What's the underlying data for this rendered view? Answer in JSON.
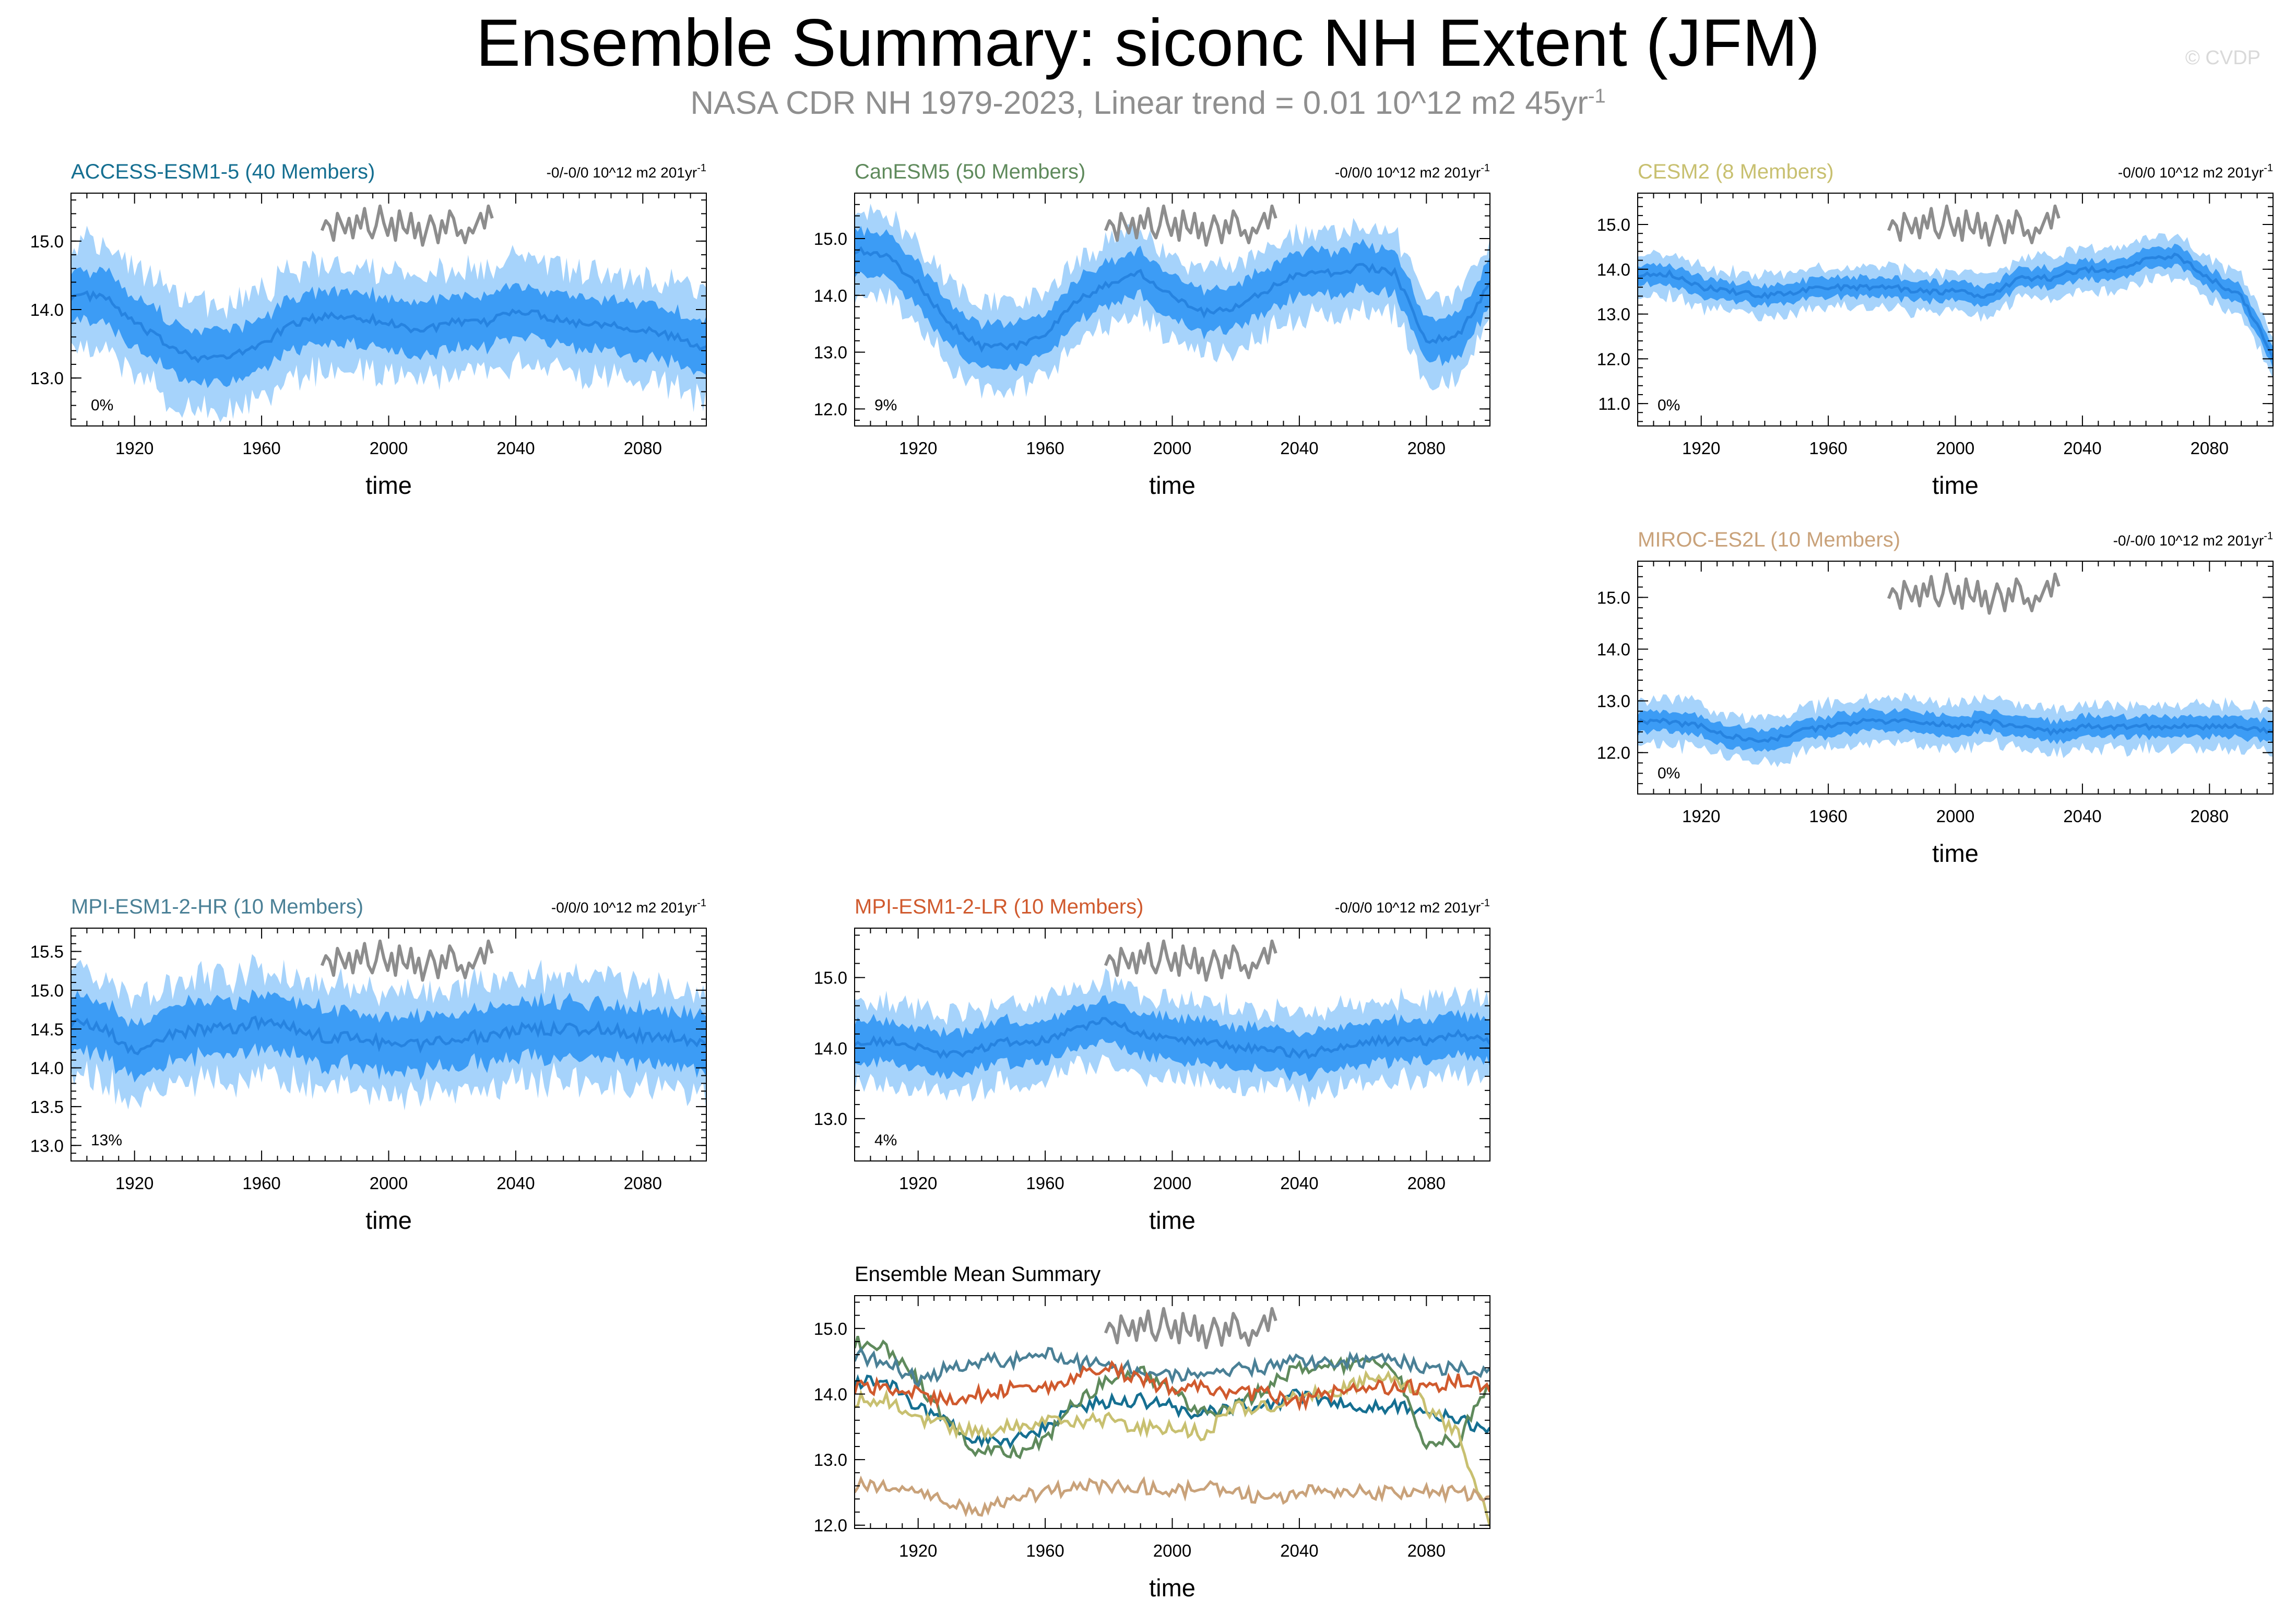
{
  "header": {
    "title": "Ensemble Summary: siconc NH Extent (JFM)",
    "subtitle_main": "NASA CDR NH 1979-2023, Linear trend = 0.01 10^12 m2 45yr",
    "subtitle_exp": "-1",
    "credit": "© CVDP"
  },
  "colors": {
    "outer_band": "#a6d3fb",
    "inner_band": "#3c9cf5",
    "mean_line": "#2683e0",
    "obs_line": "#8d8d8d"
  },
  "chart_data": [
    {
      "id": "access",
      "type": "area",
      "title": "ACCESS-ESM1-5 (40 Members)",
      "title_color": "#156f91",
      "trend_label": "-0/-0/0 10^12 m2 201yr",
      "trend_exp": "-1",
      "percent": "0%",
      "xlabel": "time",
      "ylabel": "",
      "xlim": [
        1900,
        2100
      ],
      "ylim": [
        12.3,
        15.7
      ],
      "yticks": [
        13.0,
        14.0,
        15.0
      ],
      "ytick_labels": [
        "13.0",
        "14.0",
        "15.0"
      ],
      "xticks": [
        1920,
        1960,
        2000,
        2040,
        2080
      ],
      "xtick_labels": [
        "1920",
        "1960",
        "2000",
        "2040",
        "2080"
      ],
      "mean": {
        "x": [
          1900,
          1910,
          1920,
          1930,
          1940,
          1950,
          1960,
          1970,
          1980,
          1990,
          2000,
          2010,
          2020,
          2030,
          2040,
          2050,
          2060,
          2070,
          2080,
          2090,
          2100
        ],
        "y": [
          14.2,
          14.2,
          13.8,
          13.5,
          13.3,
          13.3,
          13.5,
          13.8,
          13.9,
          13.9,
          13.8,
          13.7,
          13.8,
          13.8,
          14.0,
          13.9,
          13.8,
          13.8,
          13.7,
          13.6,
          13.4
        ]
      },
      "inner_halfwidth": 0.38,
      "outer_halfwidth": 0.75,
      "noise": 0.12
    },
    {
      "id": "canesm",
      "type": "area",
      "title": "CanESM5 (50 Members)",
      "title_color": "#5f8a5c",
      "trend_label": "-0/0/0 10^12 m2 201yr",
      "trend_exp": "-1",
      "percent": "9%",
      "xlabel": "time",
      "ylabel": "",
      "xlim": [
        1900,
        2100
      ],
      "ylim": [
        11.7,
        15.8
      ],
      "yticks": [
        12.0,
        13.0,
        14.0,
        15.0
      ],
      "ytick_labels": [
        "12.0",
        "13.0",
        "14.0",
        "15.0"
      ],
      "xticks": [
        1920,
        1960,
        2000,
        2040,
        2080
      ],
      "xtick_labels": [
        "1920",
        "1960",
        "2000",
        "2040",
        "2080"
      ],
      "mean": {
        "x": [
          1900,
          1910,
          1920,
          1930,
          1940,
          1950,
          1960,
          1970,
          1980,
          1990,
          2000,
          2010,
          2020,
          2030,
          2040,
          2050,
          2060,
          2070,
          2080,
          2090,
          2100
        ],
        "y": [
          14.8,
          14.7,
          14.2,
          13.5,
          13.1,
          13.1,
          13.3,
          13.9,
          14.2,
          14.4,
          14.0,
          13.7,
          13.8,
          14.1,
          14.4,
          14.4,
          14.5,
          14.4,
          13.2,
          13.3,
          14.2
        ]
      },
      "inner_halfwidth": 0.38,
      "outer_halfwidth": 0.72,
      "noise": 0.12
    },
    {
      "id": "cesm2",
      "type": "area",
      "title": "CESM2 (8 Members)",
      "title_color": "#c8c070",
      "trend_label": "-0/0/0 10^12 m2 201yr",
      "trend_exp": "-1",
      "percent": "0%",
      "xlabel": "time",
      "ylabel": "",
      "xlim": [
        1900,
        2100
      ],
      "ylim": [
        10.5,
        15.7
      ],
      "yticks": [
        11.0,
        12.0,
        13.0,
        14.0,
        15.0
      ],
      "ytick_labels": [
        "11.0",
        "12.0",
        "13.0",
        "14.0",
        "15.0"
      ],
      "xticks": [
        1920,
        1960,
        2000,
        2040,
        2080
      ],
      "xtick_labels": [
        "1920",
        "1960",
        "2000",
        "2040",
        "2080"
      ],
      "mean": {
        "x": [
          1900,
          1910,
          1920,
          1930,
          1940,
          1950,
          1960,
          1970,
          1980,
          1990,
          2000,
          2010,
          2020,
          2030,
          2040,
          2050,
          2060,
          2070,
          2080,
          2090,
          2096,
          2100
        ],
        "y": [
          13.9,
          13.9,
          13.6,
          13.5,
          13.4,
          13.5,
          13.6,
          13.6,
          13.6,
          13.5,
          13.5,
          13.4,
          13.8,
          13.8,
          14.0,
          14.0,
          14.2,
          14.3,
          13.8,
          13.4,
          12.6,
          12.0
        ]
      },
      "inner_halfwidth": 0.22,
      "outer_halfwidth": 0.45,
      "noise": 0.12
    },
    {
      "id": "miroc",
      "type": "area",
      "title": "MIROC-ES2L (10 Members)",
      "title_color": "#c9a27a",
      "trend_label": "-0/-0/0 10^12 m2 201yr",
      "trend_exp": "-1",
      "percent": "0%",
      "xlabel": "time",
      "ylabel": "",
      "xlim": [
        1900,
        2100
      ],
      "ylim": [
        11.2,
        15.7
      ],
      "yticks": [
        12.0,
        13.0,
        14.0,
        15.0
      ],
      "ytick_labels": [
        "12.0",
        "13.0",
        "14.0",
        "15.0"
      ],
      "xticks": [
        1920,
        1960,
        2000,
        2040,
        2080
      ],
      "xtick_labels": [
        "1920",
        "1960",
        "2000",
        "2040",
        "2080"
      ],
      "mean": {
        "x": [
          1900,
          1910,
          1920,
          1930,
          1940,
          1950,
          1960,
          1970,
          1980,
          1990,
          2000,
          2010,
          2020,
          2030,
          2040,
          2050,
          2060,
          2070,
          2080,
          2090,
          2100
        ],
        "y": [
          12.6,
          12.6,
          12.5,
          12.3,
          12.2,
          12.4,
          12.5,
          12.6,
          12.6,
          12.6,
          12.5,
          12.6,
          12.5,
          12.4,
          12.5,
          12.5,
          12.5,
          12.5,
          12.5,
          12.5,
          12.4
        ]
      },
      "inner_halfwidth": 0.2,
      "outer_halfwidth": 0.42,
      "noise": 0.1
    },
    {
      "id": "mpihr",
      "type": "area",
      "title": "MPI-ESM1-2-HR (10 Members)",
      "title_color": "#4a8096",
      "trend_label": "-0/0/0 10^12 m2 201yr",
      "trend_exp": "-1",
      "percent": "13%",
      "xlabel": "time",
      "ylabel": "",
      "xlim": [
        1900,
        2100
      ],
      "ylim": [
        12.8,
        15.8
      ],
      "yticks": [
        13.0,
        13.5,
        14.0,
        14.5,
        15.0,
        15.5
      ],
      "ytick_labels": [
        "13.0",
        "13.5",
        "14.0",
        "14.5",
        "15.0",
        "15.5"
      ],
      "xticks": [
        1920,
        1960,
        2000,
        2040,
        2080
      ],
      "xtick_labels": [
        "1920",
        "1960",
        "2000",
        "2040",
        "2080"
      ],
      "mean": {
        "x": [
          1900,
          1910,
          1920,
          1930,
          1940,
          1950,
          1960,
          1970,
          1980,
          1990,
          2000,
          2010,
          2020,
          2030,
          2040,
          2050,
          2060,
          2070,
          2080,
          2090,
          2100
        ],
        "y": [
          14.6,
          14.5,
          14.2,
          14.4,
          14.5,
          14.5,
          14.6,
          14.5,
          14.4,
          14.4,
          14.3,
          14.3,
          14.4,
          14.4,
          14.5,
          14.5,
          14.5,
          14.5,
          14.4,
          14.4,
          14.3
        ]
      },
      "inner_halfwidth": 0.35,
      "outer_halfwidth": 0.65,
      "noise": 0.15
    },
    {
      "id": "mpilr",
      "type": "area",
      "title": "MPI-ESM1-2-LR (10 Members)",
      "title_color": "#d05a2e",
      "trend_label": "-0/0/0 10^12 m2 201yr",
      "trend_exp": "-1",
      "percent": "4%",
      "xlabel": "time",
      "ylabel": "",
      "xlim": [
        1900,
        2100
      ],
      "ylim": [
        12.4,
        15.7
      ],
      "yticks": [
        13.0,
        14.0,
        15.0
      ],
      "ytick_labels": [
        "13.0",
        "14.0",
        "15.0"
      ],
      "xticks": [
        1920,
        1960,
        2000,
        2040,
        2080
      ],
      "xtick_labels": [
        "1920",
        "1960",
        "2000",
        "2040",
        "2080"
      ],
      "mean": {
        "x": [
          1900,
          1910,
          1920,
          1930,
          1940,
          1950,
          1960,
          1970,
          1980,
          1990,
          2000,
          2010,
          2020,
          2030,
          2040,
          2050,
          2060,
          2070,
          2080,
          2090,
          2100
        ],
        "y": [
          14.1,
          14.1,
          14.0,
          13.9,
          14.0,
          14.1,
          14.1,
          14.3,
          14.4,
          14.2,
          14.1,
          14.1,
          14.0,
          14.0,
          13.9,
          14.0,
          14.1,
          14.1,
          14.1,
          14.2,
          14.1
        ]
      },
      "inner_halfwidth": 0.3,
      "outer_halfwidth": 0.55,
      "noise": 0.12
    },
    {
      "id": "ensmean",
      "type": "line",
      "title": "Ensemble Mean Summary",
      "title_color": "#000000",
      "trend_label": "",
      "trend_exp": "",
      "percent": "",
      "xlabel": "time",
      "ylabel": "",
      "xlim": [
        1900,
        2100
      ],
      "ylim": [
        11.95,
        15.5
      ],
      "yticks": [
        12.0,
        13.0,
        14.0,
        15.0
      ],
      "ytick_labels": [
        "12.0",
        "13.0",
        "14.0",
        "15.0"
      ],
      "xticks": [
        1920,
        1960,
        2000,
        2040,
        2080
      ],
      "xtick_labels": [
        "1920",
        "1960",
        "2000",
        "2040",
        "2080"
      ],
      "series": [
        {
          "name": "ACCESS-ESM1-5",
          "color": "#156f91",
          "x": [
            1900,
            1910,
            1920,
            1930,
            1940,
            1950,
            1960,
            1970,
            1980,
            1990,
            2000,
            2010,
            2020,
            2030,
            2040,
            2050,
            2060,
            2070,
            2080,
            2090,
            2100
          ],
          "y": [
            14.2,
            14.2,
            13.8,
            13.5,
            13.3,
            13.3,
            13.5,
            13.8,
            13.9,
            13.9,
            13.8,
            13.7,
            13.8,
            13.8,
            14.0,
            13.9,
            13.8,
            13.8,
            13.7,
            13.6,
            13.4
          ]
        },
        {
          "name": "CanESM5",
          "color": "#5f8a5c",
          "x": [
            1900,
            1910,
            1920,
            1930,
            1940,
            1950,
            1960,
            1970,
            1980,
            1990,
            2000,
            2010,
            2020,
            2030,
            2040,
            2050,
            2060,
            2070,
            2080,
            2090,
            2100
          ],
          "y": [
            14.8,
            14.7,
            14.2,
            13.5,
            13.1,
            13.1,
            13.3,
            13.9,
            14.2,
            14.4,
            14.0,
            13.7,
            13.8,
            14.1,
            14.4,
            14.4,
            14.5,
            14.4,
            13.2,
            13.3,
            14.2
          ]
        },
        {
          "name": "CESM2",
          "color": "#c8c070",
          "x": [
            1900,
            1910,
            1920,
            1930,
            1940,
            1950,
            1960,
            1970,
            1980,
            1990,
            2000,
            2010,
            2020,
            2030,
            2040,
            2050,
            2060,
            2070,
            2080,
            2090,
            2096,
            2100
          ],
          "y": [
            13.9,
            13.9,
            13.6,
            13.5,
            13.4,
            13.5,
            13.6,
            13.6,
            13.6,
            13.5,
            13.5,
            13.4,
            13.8,
            13.8,
            14.0,
            14.0,
            14.2,
            14.3,
            13.8,
            13.4,
            12.6,
            12.0
          ]
        },
        {
          "name": "MIROC-ES2L",
          "color": "#c9a27a",
          "x": [
            1900,
            1910,
            1920,
            1930,
            1940,
            1950,
            1960,
            1970,
            1980,
            1990,
            2000,
            2010,
            2020,
            2030,
            2040,
            2050,
            2060,
            2070,
            2080,
            2090,
            2100
          ],
          "y": [
            12.6,
            12.6,
            12.5,
            12.3,
            12.2,
            12.4,
            12.5,
            12.6,
            12.6,
            12.6,
            12.5,
            12.6,
            12.5,
            12.4,
            12.5,
            12.5,
            12.5,
            12.5,
            12.5,
            12.5,
            12.4
          ]
        },
        {
          "name": "MPI-ESM1-2-HR",
          "color": "#4a8096",
          "x": [
            1900,
            1910,
            1920,
            1930,
            1940,
            1950,
            1960,
            1970,
            1980,
            1990,
            2000,
            2010,
            2020,
            2030,
            2040,
            2050,
            2060,
            2070,
            2080,
            2090,
            2100
          ],
          "y": [
            14.6,
            14.5,
            14.2,
            14.4,
            14.5,
            14.5,
            14.6,
            14.5,
            14.4,
            14.4,
            14.3,
            14.3,
            14.4,
            14.4,
            14.5,
            14.5,
            14.5,
            14.5,
            14.4,
            14.4,
            14.3
          ]
        },
        {
          "name": "MPI-ESM1-2-LR",
          "color": "#d05a2e",
          "x": [
            1900,
            1910,
            1920,
            1930,
            1940,
            1950,
            1960,
            1970,
            1980,
            1990,
            2000,
            2010,
            2020,
            2030,
            2040,
            2050,
            2060,
            2070,
            2080,
            2090,
            2100
          ],
          "y": [
            14.1,
            14.1,
            14.0,
            13.9,
            14.0,
            14.1,
            14.1,
            14.3,
            14.4,
            14.2,
            14.1,
            14.1,
            14.0,
            14.0,
            13.9,
            14.0,
            14.1,
            14.1,
            14.1,
            14.2,
            14.1
          ]
        }
      ]
    }
  ],
  "observations": {
    "name": "NASA CDR NH",
    "years": [
      1979,
      1980,
      1981,
      1982,
      1983,
      1984,
      1985,
      1986,
      1987,
      1988,
      1989,
      1990,
      1991,
      1992,
      1993,
      1994,
      1995,
      1996,
      1997,
      1998,
      1999,
      2000,
      2001,
      2002,
      2003,
      2004,
      2005,
      2006,
      2007,
      2008,
      2009,
      2010,
      2011,
      2012,
      2013,
      2014,
      2015,
      2016,
      2017,
      2018,
      2019,
      2020,
      2021,
      2022,
      2023
    ],
    "values_relative": [
      0.45,
      0.65,
      0.55,
      0.25,
      0.8,
      0.6,
      0.4,
      0.7,
      0.3,
      0.75,
      0.5,
      0.9,
      0.45,
      0.3,
      0.55,
      0.95,
      0.6,
      0.35,
      0.7,
      0.25,
      0.85,
      0.5,
      0.4,
      0.8,
      0.3,
      0.6,
      0.15,
      0.45,
      0.75,
      0.55,
      0.2,
      0.65,
      0.4,
      0.85,
      0.7,
      0.35,
      0.45,
      0.2,
      0.5,
      0.4,
      0.6,
      0.8,
      0.5,
      0.95,
      0.7
    ]
  }
}
